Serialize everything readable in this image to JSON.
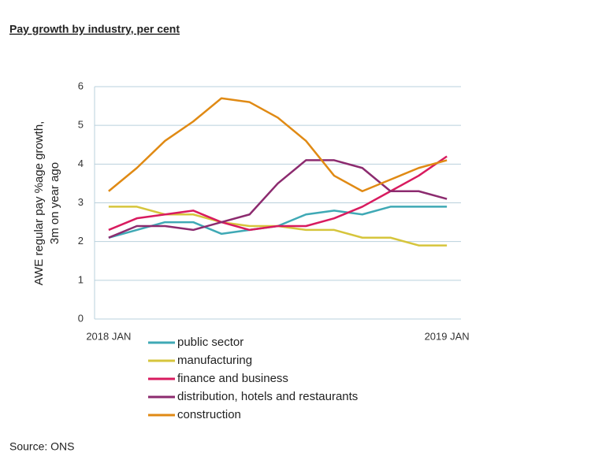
{
  "chart_data": {
    "type": "line",
    "title": "Pay growth by industry, per cent",
    "ylabel": [
      "AWE regular pay %age growth,",
      "3m on year ago"
    ],
    "source": "Source: ONS",
    "categories": [
      "2018 JAN",
      null,
      null,
      null,
      null,
      null,
      null,
      null,
      null,
      null,
      null,
      null,
      "2019 JAN"
    ],
    "ylim": [
      0,
      6
    ],
    "yticks": [
      0,
      1,
      2,
      3,
      4,
      5,
      6
    ],
    "grid": true,
    "legend": "bottom",
    "series": [
      {
        "name": "public sector",
        "color": "#3fa9b5",
        "values": [
          2.1,
          2.3,
          2.5,
          2.5,
          2.2,
          2.3,
          2.4,
          2.7,
          2.8,
          2.7,
          2.9,
          2.9,
          2.9
        ]
      },
      {
        "name": "manufacturing",
        "color": "#d6c53c",
        "values": [
          2.9,
          2.9,
          2.7,
          2.7,
          2.5,
          2.4,
          2.4,
          2.3,
          2.3,
          2.1,
          2.1,
          1.9,
          1.9
        ]
      },
      {
        "name": "finance and business",
        "color": "#d81b5f",
        "values": [
          2.3,
          2.6,
          2.7,
          2.8,
          2.5,
          2.3,
          2.4,
          2.4,
          2.6,
          2.9,
          3.3,
          3.7,
          4.2
        ]
      },
      {
        "name": "distribution, hotels and restaurants",
        "color": "#8c2b6f",
        "values": [
          2.1,
          2.4,
          2.4,
          2.3,
          2.5,
          2.7,
          3.5,
          4.1,
          4.1,
          3.9,
          3.3,
          3.3,
          3.1
        ]
      },
      {
        "name": "construction",
        "color": "#e08a14",
        "values": [
          3.3,
          3.9,
          4.6,
          5.1,
          5.7,
          5.6,
          5.2,
          4.6,
          3.7,
          3.3,
          3.6,
          3.9,
          4.1
        ]
      }
    ]
  }
}
